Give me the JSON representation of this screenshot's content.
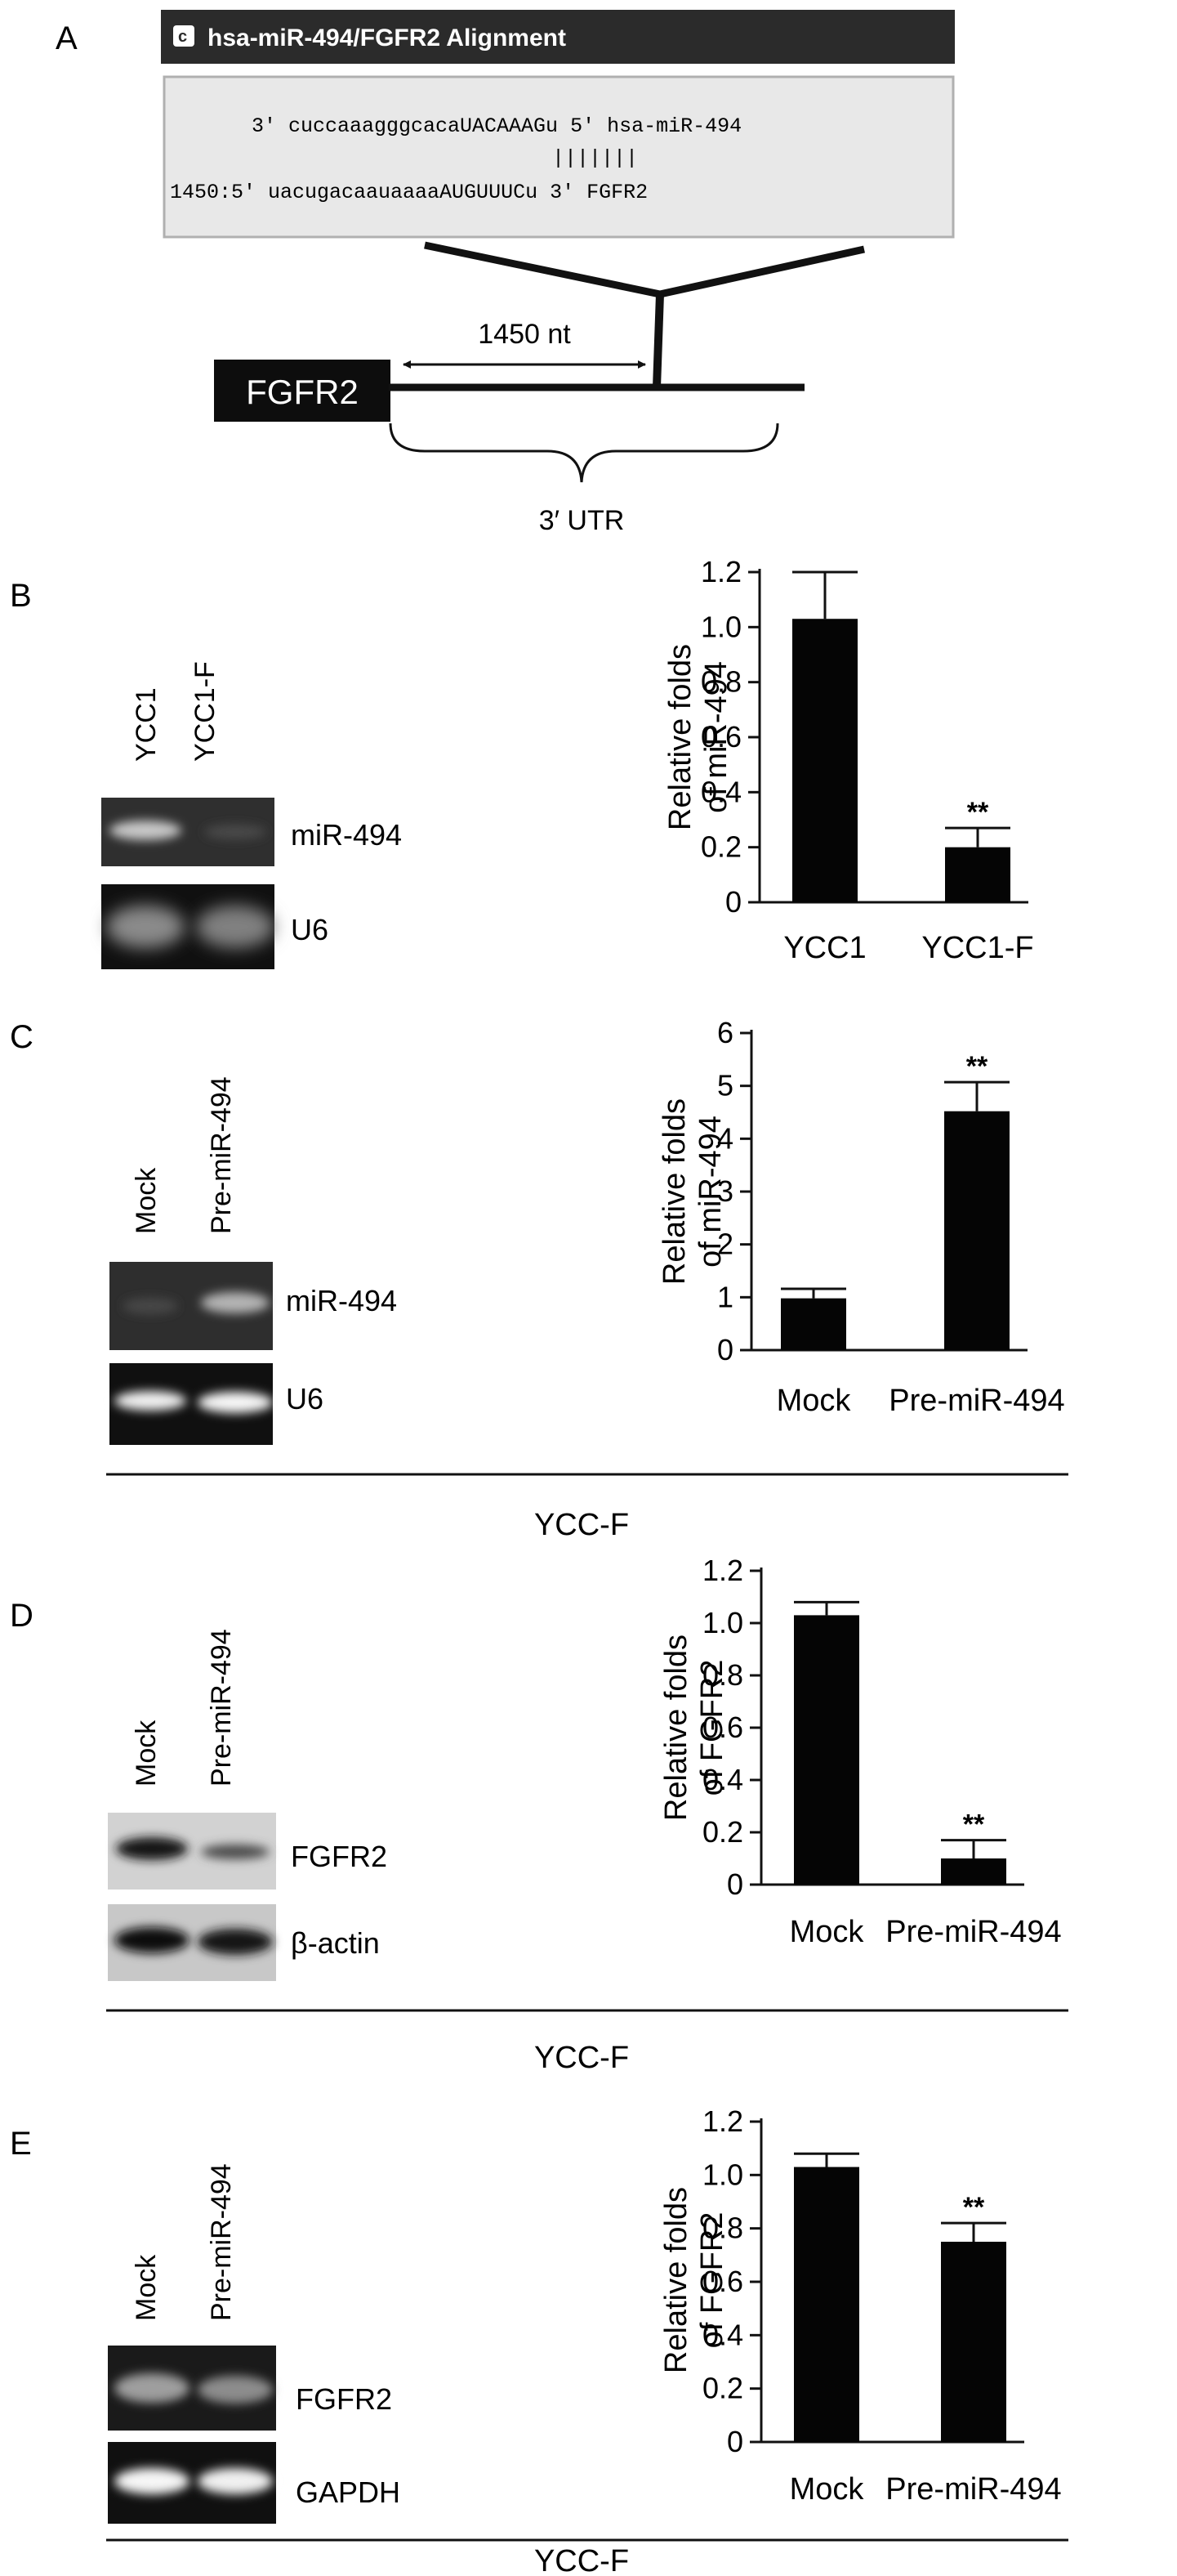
{
  "panel_letters": [
    "A",
    "B",
    "C",
    "D",
    "E"
  ],
  "alignment": {
    "title": "hsa-miR-494/FGFR2 Alignment",
    "mirna_line": "3' cuccaaagggcacaUACAAAGu 5' hsa-miR-494",
    "pairing_line": "|||||||",
    "target_line": "1450:5' uacugacaauaaaaAUGUUUCu 3' FGFR2"
  },
  "schematic": {
    "gene_label": "FGFR2",
    "distance_label": "1450 nt",
    "region_label": "3′ UTR"
  },
  "gels": {
    "B": {
      "lanes": [
        "YCC1",
        "YCC1-F"
      ],
      "bands": [
        "miR-494",
        "U6"
      ]
    },
    "C": {
      "lanes": [
        "Mock",
        "Pre-miR-494"
      ],
      "bands": [
        "miR-494",
        "U6"
      ],
      "cell_line": "YCC-F"
    },
    "D": {
      "lanes": [
        "Mock",
        "Pre-miR-494"
      ],
      "bands": [
        "FGFR2",
        "β-actin"
      ],
      "cell_line": "YCC-F"
    },
    "E": {
      "lanes": [
        "Mock",
        "Pre-miR-494"
      ],
      "bands": [
        "FGFR2",
        "GAPDH"
      ],
      "cell_line": "YCC-F"
    }
  },
  "chart_data": [
    {
      "panel": "B",
      "type": "bar",
      "categories": [
        "YCC1",
        "YCC1-F"
      ],
      "values": [
        1.03,
        0.2
      ],
      "errors": [
        0.17,
        0.07
      ],
      "significance": [
        "",
        "**"
      ],
      "ylabel_lines": [
        "Relative folds",
        "of miR-494"
      ],
      "ylim": [
        0,
        1.2
      ],
      "yticks": [
        "0",
        "0.2",
        "0.4",
        "0.6",
        "0.8",
        "1.0",
        "1.2"
      ]
    },
    {
      "panel": "C",
      "type": "bar",
      "categories": [
        "Mock",
        "Pre-miR-494"
      ],
      "values": [
        0.98,
        4.52
      ],
      "errors": [
        0.18,
        0.55
      ],
      "significance": [
        "",
        "**"
      ],
      "ylabel_lines": [
        "Relative folds",
        "of miR-494"
      ],
      "ylim": [
        0,
        6
      ],
      "yticks": [
        "0",
        "1",
        "2",
        "3",
        "4",
        "5",
        "6"
      ]
    },
    {
      "panel": "D",
      "type": "bar",
      "categories": [
        "Mock",
        "Pre-miR-494"
      ],
      "values": [
        1.03,
        0.1
      ],
      "errors": [
        0.05,
        0.07
      ],
      "significance": [
        "",
        "**"
      ],
      "ylabel_lines": [
        "Relative folds",
        "of FGFR2"
      ],
      "ylim": [
        0,
        1.2
      ],
      "yticks": [
        "0",
        "0.2",
        "0.4",
        "0.6",
        "0.8",
        "1.0",
        "1.2"
      ]
    },
    {
      "panel": "E",
      "type": "bar",
      "categories": [
        "Mock",
        "Pre-miR-494"
      ],
      "values": [
        1.03,
        0.75
      ],
      "errors": [
        0.05,
        0.07
      ],
      "significance": [
        "",
        "**"
      ],
      "ylabel_lines": [
        "Relative folds",
        "of FGFR2"
      ],
      "ylim": [
        0,
        1.2
      ],
      "yticks": [
        "0",
        "0.2",
        "0.4",
        "0.6",
        "0.8",
        "1.0",
        "1.2"
      ]
    }
  ]
}
